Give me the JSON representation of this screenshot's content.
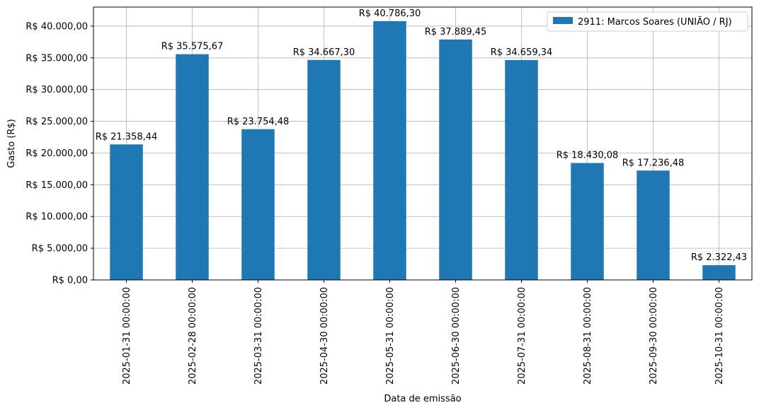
{
  "chart_data": {
    "type": "bar",
    "xlabel": "Data de emissão",
    "ylabel": "Gasto (R$)",
    "ylim": [
      0,
      43000
    ],
    "grid": true,
    "legend_position": "upper-right",
    "series": [
      {
        "name": "2911: Marcos Soares (UNIÃO / RJ)",
        "color": "#1f77b4",
        "values": [
          21358.44,
          35575.67,
          23754.48,
          34667.3,
          40786.3,
          37889.45,
          34659.34,
          18430.08,
          17236.48,
          2322.43
        ]
      }
    ],
    "categories": [
      "2025-01-31 00:00:00",
      "2025-02-28 00:00:00",
      "2025-03-31 00:00:00",
      "2025-04-30 00:00:00",
      "2025-05-31 00:00:00",
      "2025-06-30 00:00:00",
      "2025-07-31 00:00:00",
      "2025-08-31 00:00:00",
      "2025-09-30 00:00:00",
      "2025-10-31 00:00:00"
    ],
    "data_labels": [
      "R$ 21.358,44",
      "R$ 35.575,67",
      "R$ 23.754,48",
      "R$ 34.667,30",
      "R$ 40.786,30",
      "R$ 37.889,45",
      "R$ 34.659,34",
      "R$ 18.430,08",
      "R$ 17.236,48",
      "R$ 2.322,43"
    ],
    "y_ticks": [
      0,
      5000,
      10000,
      15000,
      20000,
      25000,
      30000,
      35000,
      40000
    ],
    "y_tick_labels": [
      "R$ 0,00",
      "R$ 5.000,00",
      "R$ 10.000,00",
      "R$ 15.000,00",
      "R$ 20.000,00",
      "R$ 25.000,00",
      "R$ 30.000,00",
      "R$ 35.000,00",
      "R$ 40.000,00"
    ]
  }
}
